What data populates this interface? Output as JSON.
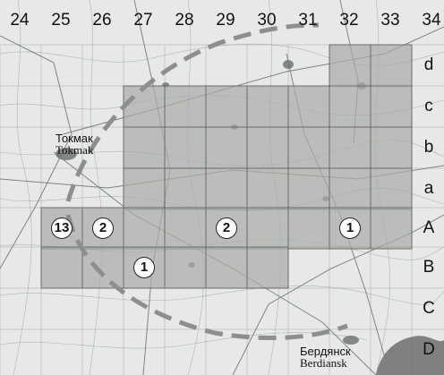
{
  "map": {
    "columns": [
      "24",
      "25",
      "26",
      "27",
      "28",
      "29",
      "30",
      "31",
      "32",
      "33",
      "34"
    ],
    "rows": [
      "d",
      "c",
      "b",
      "a",
      "A",
      "B",
      "C",
      "D"
    ],
    "surveyed_cells": [
      {
        "col": "32",
        "row": "d"
      },
      {
        "col": "33",
        "row": "d"
      },
      {
        "col": "27",
        "row": "c"
      },
      {
        "col": "28",
        "row": "c"
      },
      {
        "col": "29",
        "row": "c"
      },
      {
        "col": "30",
        "row": "c"
      },
      {
        "col": "31",
        "row": "c"
      },
      {
        "col": "32",
        "row": "c"
      },
      {
        "col": "33",
        "row": "c"
      },
      {
        "col": "27",
        "row": "b"
      },
      {
        "col": "28",
        "row": "b"
      },
      {
        "col": "29",
        "row": "b"
      },
      {
        "col": "30",
        "row": "b"
      },
      {
        "col": "31",
        "row": "b"
      },
      {
        "col": "32",
        "row": "b"
      },
      {
        "col": "33",
        "row": "b"
      },
      {
        "col": "27",
        "row": "a"
      },
      {
        "col": "28",
        "row": "a"
      },
      {
        "col": "29",
        "row": "a"
      },
      {
        "col": "30",
        "row": "a"
      },
      {
        "col": "31",
        "row": "a"
      },
      {
        "col": "32",
        "row": "a"
      },
      {
        "col": "33",
        "row": "a"
      },
      {
        "col": "25",
        "row": "A"
      },
      {
        "col": "26",
        "row": "A"
      },
      {
        "col": "27",
        "row": "A"
      },
      {
        "col": "28",
        "row": "A"
      },
      {
        "col": "29",
        "row": "A"
      },
      {
        "col": "30",
        "row": "A"
      },
      {
        "col": "31",
        "row": "A"
      },
      {
        "col": "32",
        "row": "A"
      },
      {
        "col": "33",
        "row": "A"
      },
      {
        "col": "25",
        "row": "B"
      },
      {
        "col": "26",
        "row": "B"
      },
      {
        "col": "27",
        "row": "B"
      },
      {
        "col": "28",
        "row": "B"
      },
      {
        "col": "29",
        "row": "B"
      },
      {
        "col": "30",
        "row": "B"
      }
    ],
    "counts": [
      {
        "value": "13",
        "col": "25",
        "row": "A"
      },
      {
        "value": "2",
        "col": "26",
        "row": "A"
      },
      {
        "value": "2",
        "col": "29",
        "row": "A"
      },
      {
        "value": "1",
        "col": "32",
        "row": "A"
      },
      {
        "value": "1",
        "col": "27",
        "row": "B"
      }
    ],
    "cities": [
      {
        "name_cyrillic": "Токмак",
        "name_latin": "Tokmak"
      },
      {
        "name_cyrillic": "Бердянск",
        "name_latin": "Berdiansk"
      }
    ],
    "colors": {
      "background": "#e6e9e6",
      "surveyed_fill": "#a9aca8",
      "grid_line": "#6a6d6a",
      "boundary": "#8c8f8c",
      "roads": "#6f726f",
      "sea": "#7e817e"
    }
  }
}
